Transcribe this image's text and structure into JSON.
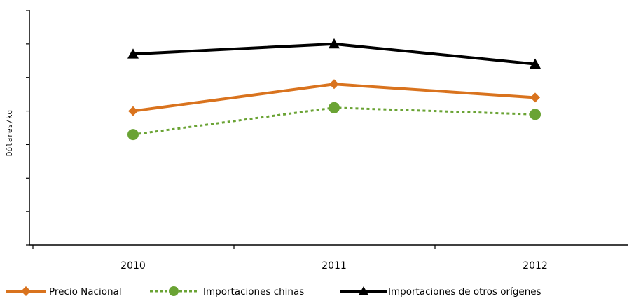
{
  "chart_data": {
    "type": "line",
    "title": "",
    "xlabel": "",
    "ylabel": "Dólares/kg",
    "x": [
      "2010",
      "2011",
      "2012"
    ],
    "series": [
      {
        "name": "Precio Nacional",
        "values": [
          4.0,
          4.8,
          4.4
        ],
        "color": "#d9731e",
        "dash": "solid",
        "marker": "diamond"
      },
      {
        "name": "Importaciones chinas",
        "values": [
          3.3,
          4.1,
          3.9
        ],
        "color": "#6aa334",
        "dash": "dotted",
        "marker": "circle"
      },
      {
        "name": "Importaciones de otros orígenes",
        "values": [
          5.7,
          6.0,
          5.4
        ],
        "color": "#000000",
        "dash": "solid",
        "marker": "triangle"
      }
    ],
    "ylim": [
      0,
      7
    ],
    "y_ticks": 7,
    "grid": false,
    "legend_position": "bottom"
  }
}
